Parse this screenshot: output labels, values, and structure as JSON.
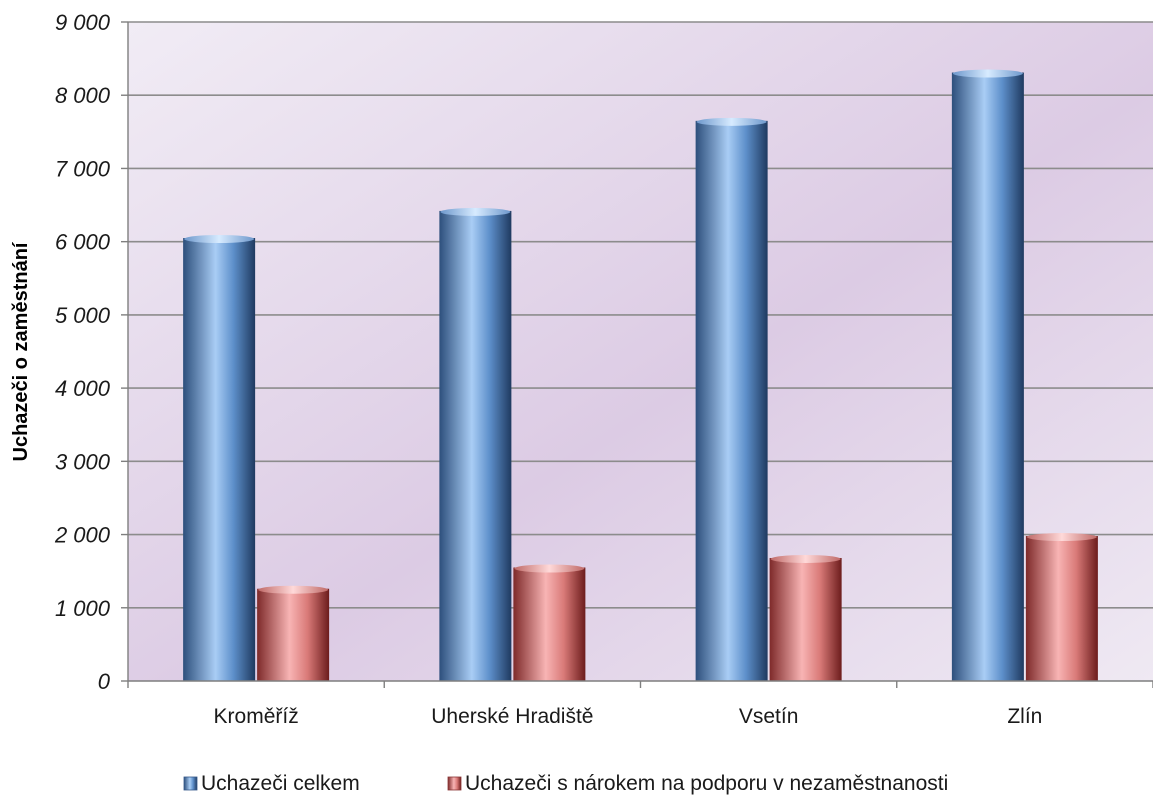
{
  "chart_data": {
    "type": "bar",
    "title": "",
    "xlabel": "",
    "ylabel": "Uchazeči o zaměstnání",
    "categories": [
      "Kroměříž",
      "Uherské Hradiště",
      "Vsetín",
      "Zlín"
    ],
    "series": [
      {
        "name": "Uchazeči celkem",
        "values": [
          6050,
          6420,
          7650,
          8310
        ],
        "color": "#4f81bd"
      },
      {
        "name": "Uchazeči s nárokem na podporu v nezaměstnanosti",
        "values": [
          1260,
          1550,
          1680,
          1980
        ],
        "color": "#c0504d"
      }
    ],
    "ylim": [
      0,
      9000
    ],
    "yticks": [
      0,
      1000,
      2000,
      3000,
      4000,
      5000,
      6000,
      7000,
      8000,
      9000
    ],
    "ytick_labels": [
      "0",
      "1 000",
      "2 000",
      "3 000",
      "4 000",
      "5 000",
      "6 000",
      "7 000",
      "8 000",
      "9 000"
    ],
    "grid": true,
    "legend_position": "bottom",
    "plot_background": "#ddd0e6"
  }
}
